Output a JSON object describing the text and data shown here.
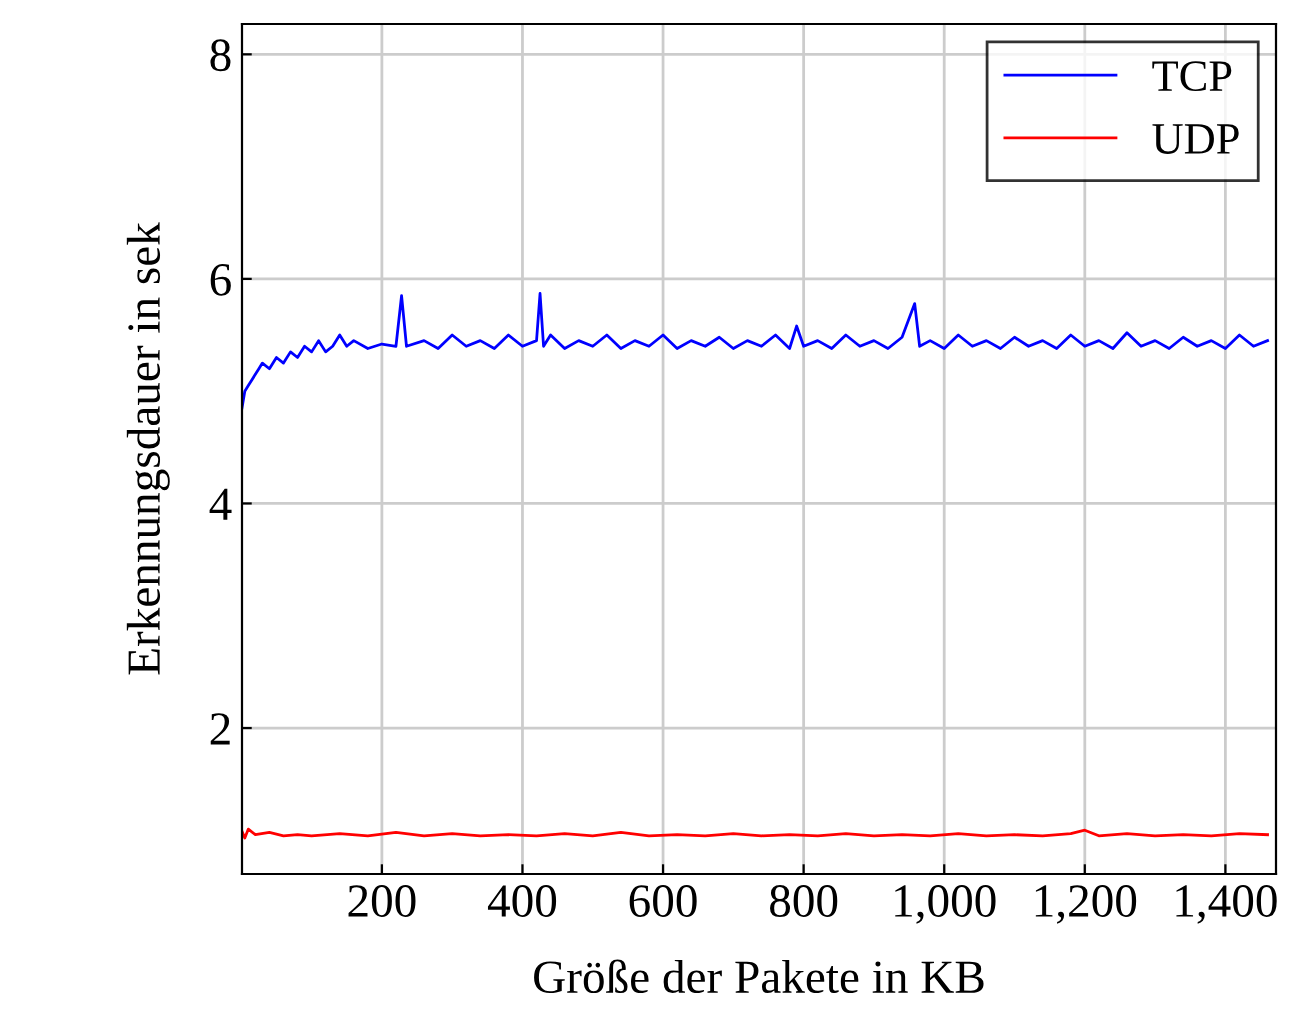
{
  "chart_data": {
    "type": "line",
    "xlabel": "Größe der Pakete in KB",
    "ylabel": "Erkennungsdauer in sek",
    "xlim": [
      1,
      1472
    ],
    "ylim": [
      0.7,
      8.27
    ],
    "xticks": [
      200,
      400,
      600,
      800,
      {
        "value": 1000,
        "label": "1,000"
      },
      {
        "value": 1200,
        "label": "1,200"
      },
      {
        "value": 1400,
        "label": "1,400"
      }
    ],
    "yticks": [
      2,
      4,
      6,
      8
    ],
    "grid": true,
    "legend": "top right",
    "marker": "none",
    "line_style": "solid",
    "series": [
      {
        "name": "TCP",
        "color": "#0000ff",
        "x": [
          1,
          5,
          10,
          15,
          20,
          25,
          30,
          40,
          50,
          60,
          70,
          80,
          90,
          100,
          110,
          120,
          130,
          140,
          150,
          160,
          180,
          200,
          220,
          228,
          235,
          260,
          280,
          300,
          320,
          340,
          360,
          380,
          400,
          420,
          425,
          430,
          440,
          460,
          480,
          500,
          520,
          540,
          560,
          580,
          600,
          620,
          640,
          660,
          680,
          700,
          720,
          740,
          760,
          780,
          790,
          800,
          820,
          840,
          860,
          880,
          900,
          920,
          940,
          958,
          965,
          980,
          1000,
          1020,
          1040,
          1060,
          1080,
          1100,
          1120,
          1140,
          1160,
          1180,
          1200,
          1220,
          1240,
          1260,
          1280,
          1300,
          1320,
          1340,
          1360,
          1380,
          1400,
          1420,
          1440,
          1460
        ],
        "values": [
          4.85,
          5.0,
          5.05,
          5.1,
          5.15,
          5.2,
          5.25,
          5.2,
          5.3,
          5.25,
          5.35,
          5.3,
          5.4,
          5.35,
          5.45,
          5.35,
          5.4,
          5.5,
          5.4,
          5.45,
          5.38,
          5.42,
          5.4,
          5.85,
          5.4,
          5.45,
          5.38,
          5.5,
          5.4,
          5.45,
          5.38,
          5.5,
          5.4,
          5.45,
          5.87,
          5.4,
          5.5,
          5.38,
          5.45,
          5.4,
          5.5,
          5.38,
          5.45,
          5.4,
          5.5,
          5.38,
          5.45,
          5.4,
          5.48,
          5.38,
          5.45,
          5.4,
          5.5,
          5.38,
          5.58,
          5.4,
          5.45,
          5.38,
          5.5,
          5.4,
          5.45,
          5.38,
          5.48,
          5.78,
          5.4,
          5.45,
          5.38,
          5.5,
          5.4,
          5.45,
          5.38,
          5.48,
          5.4,
          5.45,
          5.38,
          5.5,
          5.4,
          5.45,
          5.38,
          5.52,
          5.4,
          5.45,
          5.38,
          5.48,
          5.4,
          5.45,
          5.38,
          5.5,
          5.4,
          5.45
        ]
      },
      {
        "name": "UDP",
        "color": "#ff0000",
        "x": [
          1,
          5,
          10,
          20,
          40,
          60,
          80,
          100,
          140,
          180,
          220,
          260,
          300,
          340,
          380,
          420,
          460,
          500,
          540,
          580,
          620,
          660,
          700,
          740,
          780,
          820,
          860,
          900,
          940,
          980,
          1020,
          1060,
          1100,
          1140,
          1180,
          1200,
          1220,
          1260,
          1300,
          1340,
          1380,
          1420,
          1460
        ],
        "values": [
          1.08,
          1.02,
          1.1,
          1.05,
          1.07,
          1.04,
          1.05,
          1.04,
          1.06,
          1.04,
          1.07,
          1.04,
          1.06,
          1.04,
          1.05,
          1.04,
          1.06,
          1.04,
          1.07,
          1.04,
          1.05,
          1.04,
          1.06,
          1.04,
          1.05,
          1.04,
          1.06,
          1.04,
          1.05,
          1.04,
          1.06,
          1.04,
          1.05,
          1.04,
          1.06,
          1.09,
          1.04,
          1.06,
          1.04,
          1.05,
          1.04,
          1.06,
          1.05
        ]
      }
    ]
  }
}
